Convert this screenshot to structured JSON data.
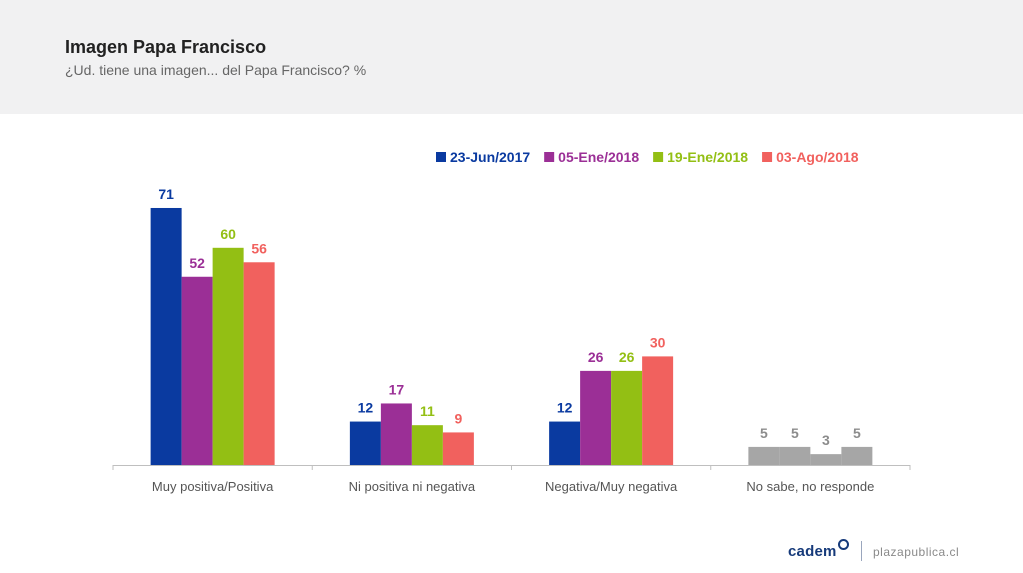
{
  "header": {
    "title": "Imagen Papa Francisco",
    "subtitle": "¿Ud. tiene una imagen... del Papa Francisco? %"
  },
  "chart_data": {
    "type": "bar",
    "title": "Imagen Papa Francisco",
    "subtitle": "¿Ud. tiene una imagen... del Papa Francisco? %",
    "xlabel": "",
    "ylabel": "",
    "ylim": [
      0,
      75
    ],
    "grid": false,
    "legend_position": "top-right",
    "categories": [
      "Muy positiva/Positiva",
      "Ni positiva ni negativa",
      "Negativa/Muy negativa",
      "No sabe, no responde"
    ],
    "series": [
      {
        "name": "23-Jun/2017",
        "color": "#0a3aa0",
        "values": [
          71,
          12,
          12,
          5
        ]
      },
      {
        "name": "05-Ene/2018",
        "color": "#9b2f96",
        "values": [
          52,
          17,
          26,
          5
        ]
      },
      {
        "name": "19-Ene/2018",
        "color": "#93bf14",
        "values": [
          60,
          11,
          26,
          3
        ]
      },
      {
        "name": "03-Ago/2018",
        "color": "#f1615e",
        "values": [
          56,
          9,
          30,
          5
        ]
      }
    ],
    "gray_category": "No sabe, no responde",
    "gray_color": "#a6a6a6",
    "gray_label_color": "#8c8c8c"
  },
  "footer": {
    "brand": "cadem",
    "site": "plazapublica.cl"
  }
}
